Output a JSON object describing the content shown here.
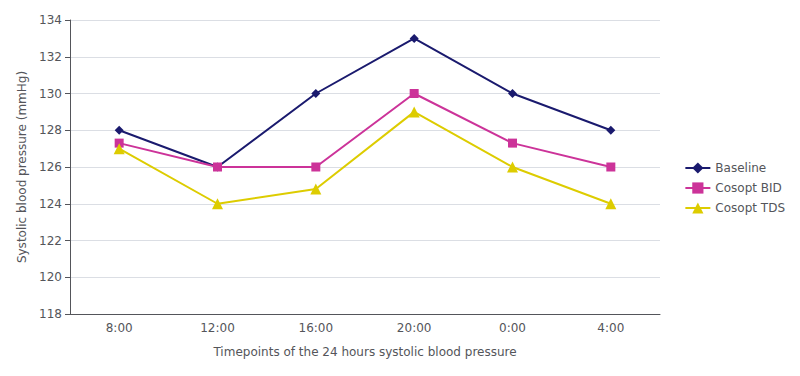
{
  "chart_data": {
    "type": "line",
    "xlabel": "Timepoints of the 24 hours systolic blood pressure",
    "ylabel": "Systolic blood pressure (mmHg)",
    "categories": [
      "8:00",
      "12:00",
      "16:00",
      "20:00",
      "0:00",
      "4:00"
    ],
    "series": [
      {
        "name": "Baseline",
        "color": "#1a1a6e",
        "marker": "diamond",
        "values": [
          128,
          126,
          130,
          133,
          130,
          128
        ]
      },
      {
        "name": "Cosopt BID",
        "color": "#cc3399",
        "marker": "square",
        "values": [
          127.3,
          126,
          126,
          130,
          127.3,
          126
        ]
      },
      {
        "name": "Cosopt TDS",
        "color": "#ddcc00",
        "marker": "triangle",
        "values": [
          127,
          124,
          124.8,
          129,
          126,
          124
        ]
      }
    ],
    "ylim": [
      118,
      134
    ],
    "yticks": [
      118,
      120,
      122,
      124,
      126,
      128,
      130,
      132,
      134
    ],
    "grid": true,
    "legend": "right"
  }
}
